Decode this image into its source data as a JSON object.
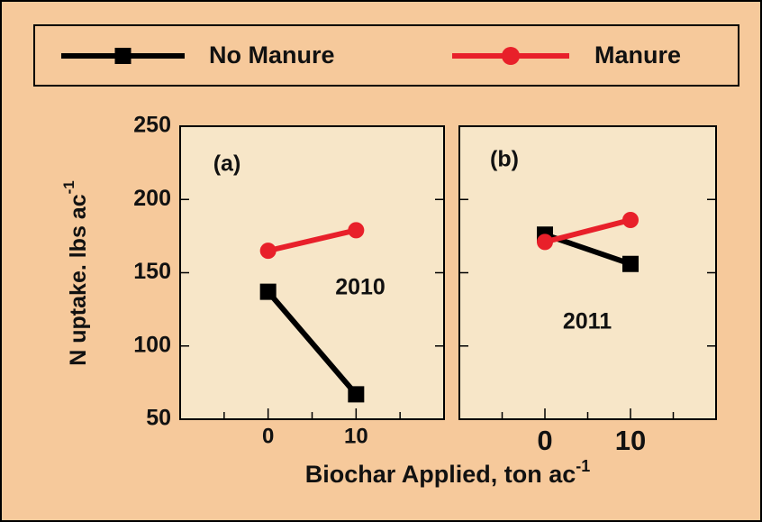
{
  "chart_data": {
    "type": "line",
    "x": [
      0,
      10
    ],
    "xlim": [
      -10,
      20
    ],
    "xticks": [
      0,
      10
    ],
    "x_minor_ticks": [
      -5,
      5,
      15
    ],
    "ylim": [
      50,
      250
    ],
    "yticks": [
      50,
      100,
      150,
      200,
      250
    ],
    "x_label": "Biochar Applied, ton ac",
    "x_label_sup": "-1",
    "y_label": "N uptake. lbs ac",
    "y_label_sup": "-1",
    "series": [
      {
        "name": "No Manure",
        "color": "#000000",
        "marker": "square"
      },
      {
        "name": "Manure",
        "color": "#e8202a",
        "marker": "circle"
      }
    ],
    "panels": [
      {
        "label": "(a)",
        "annotation": "2010",
        "series": [
          {
            "values": [
              137,
              67
            ]
          },
          {
            "values": [
              165,
              179
            ]
          }
        ]
      },
      {
        "label": "(b)",
        "annotation": "2011",
        "series": [
          {
            "values": [
              176,
              156
            ]
          },
          {
            "values": [
              171,
              186
            ]
          }
        ]
      }
    ]
  }
}
